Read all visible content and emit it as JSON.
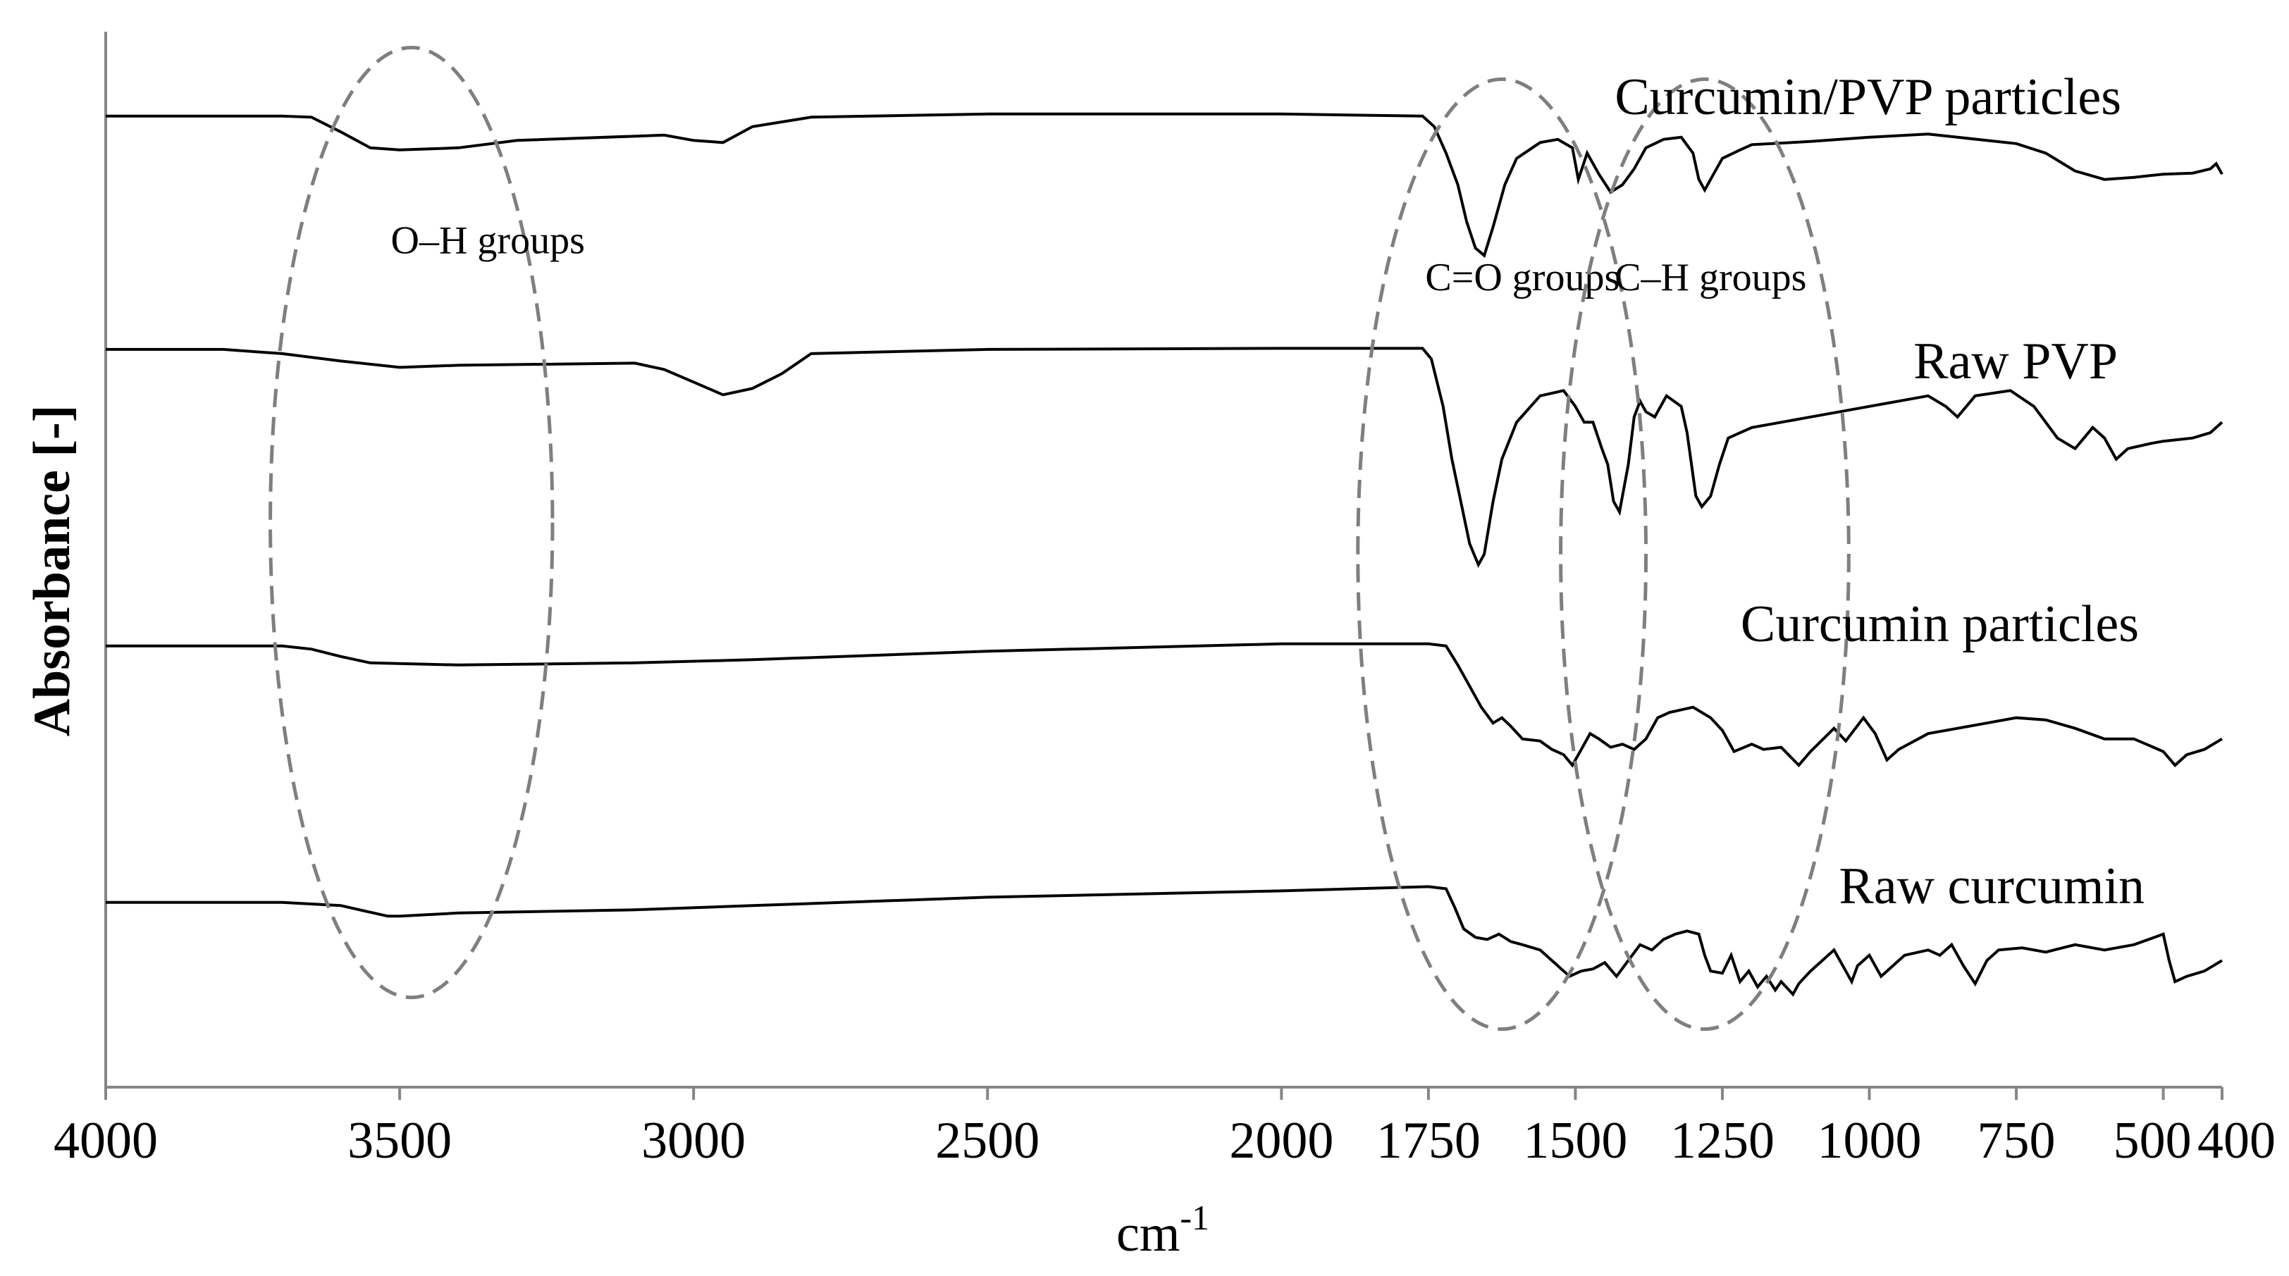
{
  "chart_data": {
    "type": "line",
    "title": "",
    "xlabel": "cm",
    "xlabel_superscript": "-1",
    "ylabel": "Absorbance [-]",
    "x_direction": "reversed",
    "xlim": [
      4000,
      400
    ],
    "x_ticks": [
      4000,
      3500,
      3000,
      2500,
      2000,
      1750,
      1500,
      1250,
      1000,
      750,
      500,
      400
    ],
    "x_tick_labels": [
      "4000",
      "3500",
      "3000",
      "2500",
      "2000",
      "1750",
      "1500",
      "1250",
      "1000",
      "750",
      "500",
      "400"
    ],
    "ylim": [
      0,
      10
    ],
    "y_ticks_shown": false,
    "grid": false,
    "legend": "none (series labelled inline)",
    "series": [
      {
        "name": "Curcumin/PVP particles",
        "points": [
          [
            4000,
            9.2
          ],
          [
            3700,
            9.2
          ],
          [
            3650,
            9.19
          ],
          [
            3600,
            9.05
          ],
          [
            3550,
            8.9
          ],
          [
            3500,
            8.88
          ],
          [
            3400,
            8.9
          ],
          [
            3300,
            8.97
          ],
          [
            3050,
            9.02
          ],
          [
            3000,
            8.97
          ],
          [
            2950,
            8.95
          ],
          [
            2900,
            9.1
          ],
          [
            2800,
            9.19
          ],
          [
            2500,
            9.22
          ],
          [
            2000,
            9.22
          ],
          [
            1760,
            9.2
          ],
          [
            1740,
            9.1
          ],
          [
            1720,
            8.85
          ],
          [
            1700,
            8.55
          ],
          [
            1685,
            8.2
          ],
          [
            1670,
            7.95
          ],
          [
            1655,
            7.88
          ],
          [
            1640,
            8.15
          ],
          [
            1620,
            8.55
          ],
          [
            1600,
            8.8
          ],
          [
            1560,
            8.95
          ],
          [
            1530,
            8.98
          ],
          [
            1505,
            8.9
          ],
          [
            1495,
            8.6
          ],
          [
            1480,
            8.85
          ],
          [
            1460,
            8.65
          ],
          [
            1440,
            8.48
          ],
          [
            1420,
            8.55
          ],
          [
            1400,
            8.7
          ],
          [
            1380,
            8.9
          ],
          [
            1350,
            8.98
          ],
          [
            1320,
            9.0
          ],
          [
            1300,
            8.85
          ],
          [
            1290,
            8.6
          ],
          [
            1280,
            8.5
          ],
          [
            1265,
            8.65
          ],
          [
            1250,
            8.8
          ],
          [
            1220,
            8.88
          ],
          [
            1200,
            8.93
          ],
          [
            1100,
            8.96
          ],
          [
            1000,
            9.0
          ],
          [
            900,
            9.03
          ],
          [
            850,
            9.0
          ],
          [
            750,
            8.94
          ],
          [
            700,
            8.85
          ],
          [
            650,
            8.68
          ],
          [
            600,
            8.6
          ],
          [
            550,
            8.62
          ],
          [
            500,
            8.65
          ],
          [
            450,
            8.66
          ],
          [
            420,
            8.7
          ],
          [
            410,
            8.75
          ],
          [
            400,
            8.65
          ]
        ]
      },
      {
        "name": "Raw PVP",
        "points": [
          [
            4000,
            6.99
          ],
          [
            3800,
            6.99
          ],
          [
            3700,
            6.95
          ],
          [
            3600,
            6.88
          ],
          [
            3500,
            6.82
          ],
          [
            3400,
            6.84
          ],
          [
            3100,
            6.86
          ],
          [
            3050,
            6.8
          ],
          [
            3000,
            6.68
          ],
          [
            2950,
            6.56
          ],
          [
            2900,
            6.62
          ],
          [
            2850,
            6.76
          ],
          [
            2800,
            6.95
          ],
          [
            2500,
            6.99
          ],
          [
            2000,
            7.0
          ],
          [
            1760,
            7.0
          ],
          [
            1745,
            6.9
          ],
          [
            1725,
            6.45
          ],
          [
            1710,
            5.95
          ],
          [
            1695,
            5.55
          ],
          [
            1680,
            5.15
          ],
          [
            1665,
            4.95
          ],
          [
            1655,
            5.05
          ],
          [
            1640,
            5.55
          ],
          [
            1625,
            5.95
          ],
          [
            1600,
            6.3
          ],
          [
            1560,
            6.55
          ],
          [
            1520,
            6.6
          ],
          [
            1500,
            6.45
          ],
          [
            1485,
            6.3
          ],
          [
            1470,
            6.3
          ],
          [
            1455,
            6.05
          ],
          [
            1445,
            5.9
          ],
          [
            1435,
            5.55
          ],
          [
            1425,
            5.45
          ],
          [
            1410,
            5.9
          ],
          [
            1400,
            6.35
          ],
          [
            1390,
            6.5
          ],
          [
            1380,
            6.4
          ],
          [
            1365,
            6.35
          ],
          [
            1345,
            6.55
          ],
          [
            1320,
            6.45
          ],
          [
            1310,
            6.2
          ],
          [
            1295,
            5.6
          ],
          [
            1285,
            5.5
          ],
          [
            1270,
            5.6
          ],
          [
            1255,
            5.9
          ],
          [
            1240,
            6.15
          ],
          [
            1200,
            6.25
          ],
          [
            1150,
            6.3
          ],
          [
            1100,
            6.35
          ],
          [
            1000,
            6.45
          ],
          [
            950,
            6.5
          ],
          [
            900,
            6.55
          ],
          [
            870,
            6.45
          ],
          [
            850,
            6.35
          ],
          [
            820,
            6.55
          ],
          [
            760,
            6.6
          ],
          [
            720,
            6.45
          ],
          [
            700,
            6.3
          ],
          [
            680,
            6.15
          ],
          [
            650,
            6.05
          ],
          [
            620,
            6.25
          ],
          [
            600,
            6.15
          ],
          [
            580,
            5.95
          ],
          [
            560,
            6.05
          ],
          [
            520,
            6.1
          ],
          [
            500,
            6.12
          ],
          [
            450,
            6.15
          ],
          [
            420,
            6.2
          ],
          [
            400,
            6.3
          ]
        ]
      },
      {
        "name": "Curcumin particles",
        "points": [
          [
            4000,
            4.18
          ],
          [
            3700,
            4.18
          ],
          [
            3650,
            4.15
          ],
          [
            3600,
            4.08
          ],
          [
            3550,
            4.02
          ],
          [
            3400,
            4.0
          ],
          [
            3100,
            4.02
          ],
          [
            2900,
            4.05
          ],
          [
            2500,
            4.13
          ],
          [
            2000,
            4.2
          ],
          [
            1750,
            4.2
          ],
          [
            1720,
            4.18
          ],
          [
            1700,
            4.0
          ],
          [
            1680,
            3.8
          ],
          [
            1660,
            3.6
          ],
          [
            1640,
            3.45
          ],
          [
            1625,
            3.5
          ],
          [
            1610,
            3.42
          ],
          [
            1590,
            3.3
          ],
          [
            1560,
            3.28
          ],
          [
            1540,
            3.2
          ],
          [
            1520,
            3.15
          ],
          [
            1505,
            3.05
          ],
          [
            1490,
            3.2
          ],
          [
            1475,
            3.35
          ],
          [
            1460,
            3.3
          ],
          [
            1440,
            3.22
          ],
          [
            1420,
            3.25
          ],
          [
            1400,
            3.2
          ],
          [
            1380,
            3.3
          ],
          [
            1360,
            3.5
          ],
          [
            1340,
            3.55
          ],
          [
            1300,
            3.6
          ],
          [
            1270,
            3.5
          ],
          [
            1250,
            3.38
          ],
          [
            1230,
            3.18
          ],
          [
            1200,
            3.25
          ],
          [
            1180,
            3.2
          ],
          [
            1150,
            3.22
          ],
          [
            1120,
            3.05
          ],
          [
            1100,
            3.18
          ],
          [
            1060,
            3.4
          ],
          [
            1040,
            3.28
          ],
          [
            1010,
            3.5
          ],
          [
            990,
            3.35
          ],
          [
            970,
            3.1
          ],
          [
            950,
            3.2
          ],
          [
            900,
            3.35
          ],
          [
            850,
            3.4
          ],
          [
            800,
            3.45
          ],
          [
            750,
            3.5
          ],
          [
            700,
            3.48
          ],
          [
            650,
            3.4
          ],
          [
            600,
            3.3
          ],
          [
            550,
            3.3
          ],
          [
            500,
            3.18
          ],
          [
            480,
            3.05
          ],
          [
            460,
            3.15
          ],
          [
            430,
            3.2
          ],
          [
            400,
            3.3
          ]
        ]
      },
      {
        "name": "Raw curcumin",
        "points": [
          [
            4000,
            1.75
          ],
          [
            3700,
            1.75
          ],
          [
            3600,
            1.72
          ],
          [
            3520,
            1.62
          ],
          [
            3500,
            1.62
          ],
          [
            3400,
            1.65
          ],
          [
            3100,
            1.68
          ],
          [
            2900,
            1.72
          ],
          [
            2500,
            1.8
          ],
          [
            2000,
            1.86
          ],
          [
            1750,
            1.9
          ],
          [
            1720,
            1.88
          ],
          [
            1705,
            1.7
          ],
          [
            1690,
            1.5
          ],
          [
            1670,
            1.42
          ],
          [
            1650,
            1.4
          ],
          [
            1630,
            1.45
          ],
          [
            1610,
            1.38
          ],
          [
            1590,
            1.35
          ],
          [
            1560,
            1.3
          ],
          [
            1540,
            1.2
          ],
          [
            1510,
            1.05
          ],
          [
            1490,
            1.1
          ],
          [
            1470,
            1.12
          ],
          [
            1450,
            1.18
          ],
          [
            1430,
            1.05
          ],
          [
            1410,
            1.2
          ],
          [
            1390,
            1.35
          ],
          [
            1370,
            1.3
          ],
          [
            1350,
            1.4
          ],
          [
            1330,
            1.45
          ],
          [
            1310,
            1.48
          ],
          [
            1290,
            1.45
          ],
          [
            1280,
            1.25
          ],
          [
            1270,
            1.1
          ],
          [
            1250,
            1.08
          ],
          [
            1235,
            1.25
          ],
          [
            1220,
            1.0
          ],
          [
            1205,
            1.1
          ],
          [
            1190,
            0.95
          ],
          [
            1175,
            1.05
          ],
          [
            1160,
            0.92
          ],
          [
            1150,
            1.0
          ],
          [
            1130,
            0.88
          ],
          [
            1120,
            0.98
          ],
          [
            1100,
            1.1
          ],
          [
            1080,
            1.2
          ],
          [
            1060,
            1.3
          ],
          [
            1040,
            1.1
          ],
          [
            1030,
            1.0
          ],
          [
            1020,
            1.15
          ],
          [
            1000,
            1.25
          ],
          [
            980,
            1.05
          ],
          [
            960,
            1.15
          ],
          [
            940,
            1.25
          ],
          [
            900,
            1.3
          ],
          [
            880,
            1.25
          ],
          [
            860,
            1.35
          ],
          [
            840,
            1.15
          ],
          [
            820,
            0.98
          ],
          [
            800,
            1.2
          ],
          [
            780,
            1.3
          ],
          [
            740,
            1.32
          ],
          [
            700,
            1.28
          ],
          [
            650,
            1.35
          ],
          [
            600,
            1.3
          ],
          [
            550,
            1.35
          ],
          [
            500,
            1.45
          ],
          [
            490,
            1.2
          ],
          [
            480,
            1.0
          ],
          [
            460,
            1.05
          ],
          [
            430,
            1.1
          ],
          [
            400,
            1.2
          ]
        ]
      }
    ],
    "annotations": [
      {
        "text": "O–H groups",
        "x": 3350,
        "y": 7.9,
        "region": {
          "cx": 3480,
          "cy": 5.35,
          "rx": 240,
          "ry": 4.5
        }
      },
      {
        "text": "C=O groups",
        "x": 1590,
        "y": 7.55,
        "region": {
          "cx": 1625,
          "cy": 5.05,
          "rx": 245,
          "ry": 4.5
        }
      },
      {
        "text": "C–H groups",
        "x": 1270,
        "y": 7.55,
        "region": {
          "cx": 1280,
          "cy": 5.05,
          "rx": 245,
          "ry": 4.5
        }
      }
    ]
  }
}
